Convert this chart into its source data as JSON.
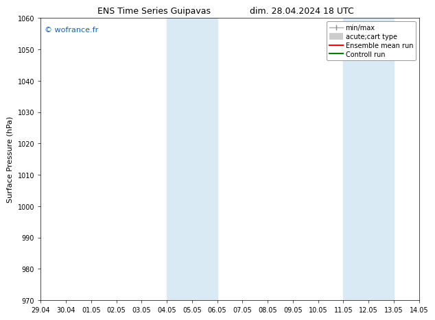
{
  "title_left": "ENS Time Series Guipavas",
  "title_right": "dim. 28.04.2024 18 UTC",
  "ylabel": "Surface Pressure (hPa)",
  "ylim": [
    970,
    1060
  ],
  "yticks": [
    970,
    980,
    990,
    1000,
    1010,
    1020,
    1030,
    1040,
    1050,
    1060
  ],
  "xtick_labels": [
    "29.04",
    "30.04",
    "01.05",
    "02.05",
    "03.05",
    "04.05",
    "05.05",
    "06.05",
    "07.05",
    "08.05",
    "09.05",
    "10.05",
    "11.05",
    "12.05",
    "13.05",
    "14.05"
  ],
  "shaded_regions": [
    {
      "xstart": 5,
      "xend": 7
    },
    {
      "xstart": 12,
      "xend": 14
    }
  ],
  "shaded_color": "#daeaf5",
  "background_color": "#ffffff",
  "watermark_text": "© wofrance.fr",
  "watermark_color": "#1560bd",
  "legend_entries": [
    {
      "label": "min/max",
      "color": "#aaaaaa",
      "lw": 1.5
    },
    {
      "label": "acute;cart type",
      "color": "#cccccc",
      "lw": 6
    },
    {
      "label": "Ensemble mean run",
      "color": "red",
      "lw": 1.5
    },
    {
      "label": "Controll run",
      "color": "green",
      "lw": 1.5
    }
  ],
  "title_fontsize": 9,
  "tick_fontsize": 7,
  "ylabel_fontsize": 8,
  "legend_fontsize": 7
}
